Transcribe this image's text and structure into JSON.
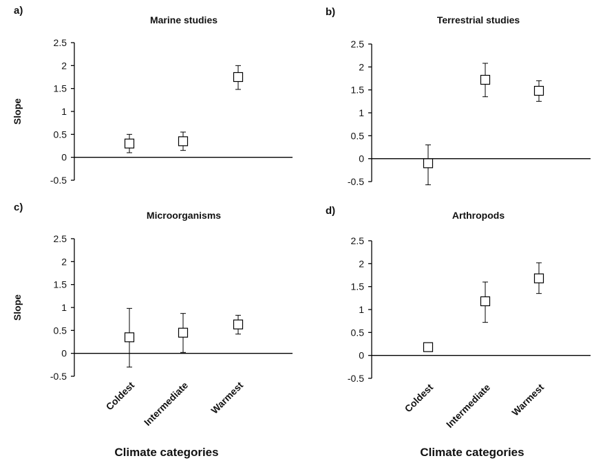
{
  "shared_xlabel": "Climate categories",
  "colors": {
    "axis": "#000000",
    "marker_fill": "#ffffff",
    "marker_stroke": "#000000",
    "text": "#111111"
  },
  "chart_data": [
    {
      "type": "scatter",
      "panel": "a)",
      "title": "Marine studies",
      "ylabel": "Slope",
      "categories": [
        "Coldest",
        "Intermediate",
        "Warmest"
      ],
      "ylim": [
        -0.5,
        2.5
      ],
      "yticks": [
        "2.5",
        "2",
        "1.5",
        "1",
        "0.5",
        "0",
        "-0.5"
      ],
      "series": [
        {
          "values": [
            0.3,
            0.35,
            1.75
          ],
          "error_low": [
            0.1,
            0.15,
            1.48
          ],
          "error_high": [
            0.5,
            0.55,
            2.0
          ]
        }
      ],
      "grid": false,
      "marker": "open-square",
      "show_category_labels": false
    },
    {
      "type": "scatter",
      "panel": "b)",
      "title": "Terrestrial studies",
      "ylabel": "",
      "categories": [
        "Coldest",
        "Intermediate",
        "Warmest"
      ],
      "ylim": [
        -0.5,
        2.5
      ],
      "yticks": [
        "2.5",
        "2",
        "1.5",
        "1",
        "0.5",
        "0",
        "-0.5"
      ],
      "series": [
        {
          "values": [
            -0.1,
            1.72,
            1.48
          ],
          "error_low": [
            -0.57,
            1.35,
            1.25
          ],
          "error_high": [
            0.3,
            2.08,
            1.7
          ]
        }
      ],
      "grid": false,
      "marker": "open-square",
      "show_category_labels": false
    },
    {
      "type": "scatter",
      "panel": "c)",
      "title": "Microorganisms",
      "ylabel": "Slope",
      "categories": [
        "Coldest",
        "Intermediate",
        "Warmest"
      ],
      "ylim": [
        -0.5,
        2.5
      ],
      "yticks": [
        "2.5",
        "2",
        "1.5",
        "1",
        "0.5",
        "0",
        "-0.5"
      ],
      "series": [
        {
          "values": [
            0.35,
            0.45,
            0.63
          ],
          "error_low": [
            -0.3,
            0.02,
            0.42
          ],
          "error_high": [
            0.98,
            0.87,
            0.83
          ]
        }
      ],
      "grid": false,
      "marker": "open-square",
      "show_category_labels": true
    },
    {
      "type": "scatter",
      "panel": "d)",
      "title": "Arthropods",
      "ylabel": "",
      "categories": [
        "Coldest",
        "Intermediate",
        "Warmest"
      ],
      "ylim": [
        -0.5,
        2.5
      ],
      "yticks": [
        "2.5",
        "2",
        "1.5",
        "1",
        "0.5",
        "0",
        "-0.5"
      ],
      "series": [
        {
          "values": [
            0.18,
            1.18,
            1.68
          ],
          "error_low": [
            0.14,
            0.72,
            1.35
          ],
          "error_high": [
            0.22,
            1.6,
            2.02
          ]
        }
      ],
      "grid": false,
      "marker": "open-square",
      "show_category_labels": true
    }
  ]
}
